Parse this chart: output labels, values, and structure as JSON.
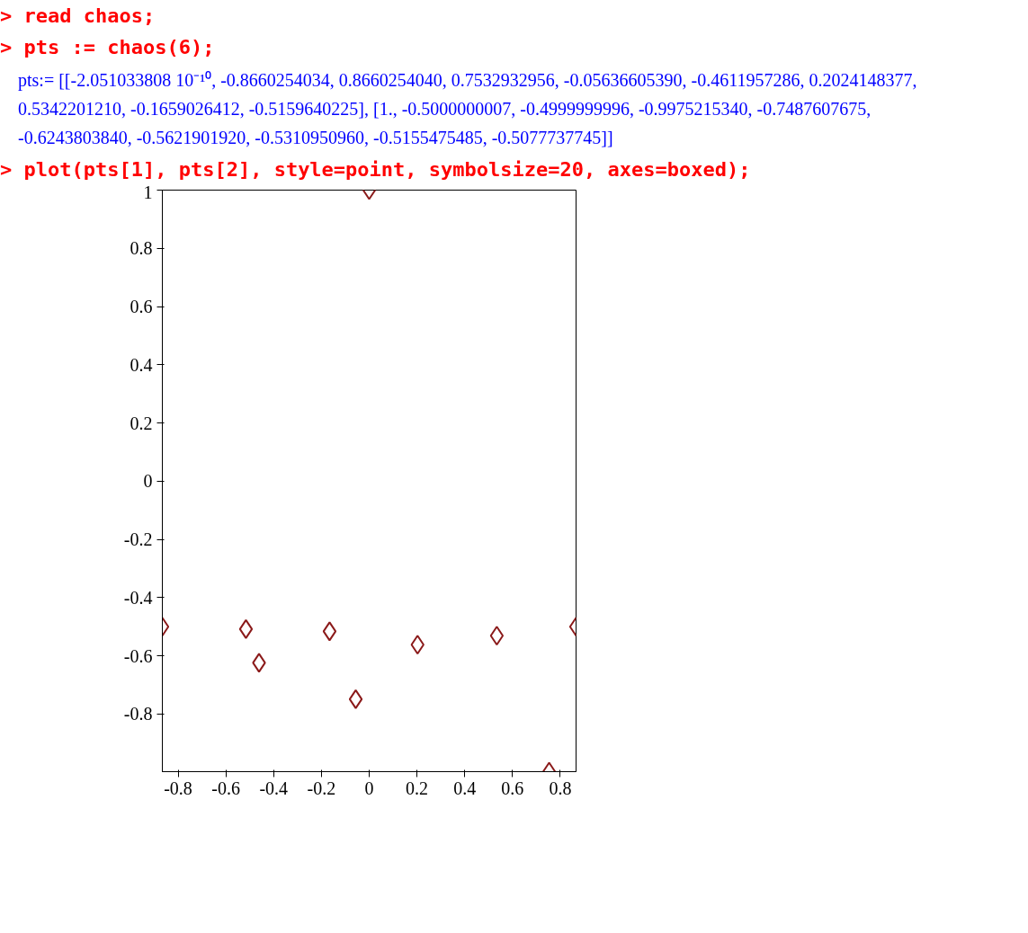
{
  "chart_data": {
    "type": "scatter",
    "annotations": [
      "> read chaos;",
      "> pts := chaos(6);",
      "pts:= [[-2.051033808 10⁻¹⁰, -0.8660254034, 0.8660254040, 0.7532932956, -0.05636605390, -0.4611957286, 0.2024148377, 0.5342201210, -0.1659026412, -0.5159640225], [1., -0.5000000007, -0.4999999996, -0.9975215340, -0.7487607675, -0.6243803840, -0.5621901920, -0.5310950960, -0.5155475485, -0.5077737745]]",
      "> plot(pts[1], pts[2], style=point, symbolsize=20, axes=boxed);"
    ],
    "x": [
      0,
      -0.866,
      0.866,
      0.7533,
      -0.0564,
      -0.4612,
      0.2024,
      0.5342,
      -0.1659,
      -0.516
    ],
    "series": [
      {
        "color": "#8b1a1a",
        "values": [
          1,
          -0.5,
          -0.5,
          -0.998,
          -0.749,
          -0.624,
          -0.562,
          -0.531,
          -0.516,
          -0.508
        ]
      }
    ],
    "xlim": [
      -0.866,
      0.866
    ],
    "ylim": [
      -0.998,
      1
    ],
    "xticks": [
      -0.8,
      -0.6,
      -0.4,
      -0.2,
      0,
      0.2,
      0.4,
      0.6,
      0.8
    ],
    "yticks": [
      -0.8,
      -0.6,
      -0.4,
      -0.2,
      0,
      0.2,
      0.4,
      0.6,
      0.8,
      1
    ],
    "marker": "diamond",
    "grid": false
  }
}
